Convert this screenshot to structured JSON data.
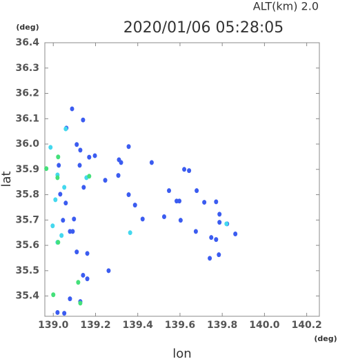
{
  "chart_data": {
    "type": "scatter",
    "title": "2020/01/06 05:28:05",
    "annotation": "ALT(km)  2.0",
    "y_unit": "(deg)",
    "x_unit": "(deg)",
    "xlabel": "lon",
    "ylabel": "lat",
    "xlim": [
      138.96,
      140.26
    ],
    "ylim": [
      35.32,
      36.4
    ],
    "xticks": [
      {
        "value": 139,
        "label": "139.0"
      },
      139.2,
      139.4,
      139.6,
      139.8,
      {
        "value": 140,
        "label": "140.0"
      },
      140.2
    ],
    "yticks": [
      35.4,
      35.5,
      35.6,
      35.7,
      35.8,
      35.9,
      {
        "value": 36,
        "label": "36.0"
      },
      36.1,
      36.2,
      36.3,
      36.4
    ],
    "series": [
      {
        "color": "#3b5cf0",
        "x": [
          139.089,
          139.062,
          139.141,
          139.111,
          139.128,
          139.197,
          139.17,
          139.026,
          139.125,
          139.357,
          139.311,
          139.321,
          139.466,
          139.246,
          139.308,
          139.62,
          139.643,
          139.548,
          139.679,
          139.597,
          139.584,
          139.715,
          139.771,
          139.787,
          139.423,
          139.525,
          139.603,
          139.046,
          139.098,
          139.675,
          139.092,
          139.787,
          139.748,
          139.771,
          139.741,
          139.784,
          139.862,
          139.161,
          139.111,
          139.262,
          139.141,
          139.161,
          139.079,
          139.128,
          139.052,
          139.02,
          139.059,
          139.033,
          139.144,
          139.387,
          139.357,
          139.079,
          139.823
        ],
        "y": [
          36.139,
          36.063,
          36.095,
          35.998,
          35.976,
          35.954,
          35.948,
          35.916,
          35.916,
          35.99,
          35.938,
          35.927,
          35.927,
          35.857,
          35.876,
          35.9,
          35.895,
          35.816,
          35.816,
          35.775,
          35.775,
          35.77,
          35.772,
          35.723,
          35.704,
          35.713,
          35.699,
          35.699,
          35.704,
          35.655,
          35.655,
          35.691,
          35.631,
          35.623,
          35.549,
          35.563,
          35.645,
          35.568,
          35.574,
          35.5,
          35.482,
          35.468,
          35.389,
          35.378,
          35.332,
          35.335,
          35.767,
          35.802,
          35.829,
          35.759,
          35.8,
          35.655,
          35.685
        ]
      },
      {
        "color": "#44d8ee",
        "x": [
          138.987,
          139.02,
          139.052,
          139.01,
          138.997,
          139.039,
          139.02,
          139.364,
          139.82,
          139.157,
          139.059
        ],
        "y": [
          35.987,
          35.878,
          35.829,
          35.78,
          35.677,
          35.639,
          35.612,
          35.65,
          35.685,
          35.867,
          36.06
        ]
      },
      {
        "color": "#44e07a",
        "x": [
          139.023,
          139.02,
          139.17,
          139.023,
          139.0,
          139.118,
          139.128,
          138.967
        ],
        "y": [
          35.949,
          35.867,
          35.873,
          35.612,
          35.405,
          35.454,
          35.372,
          35.903
        ]
      }
    ]
  }
}
